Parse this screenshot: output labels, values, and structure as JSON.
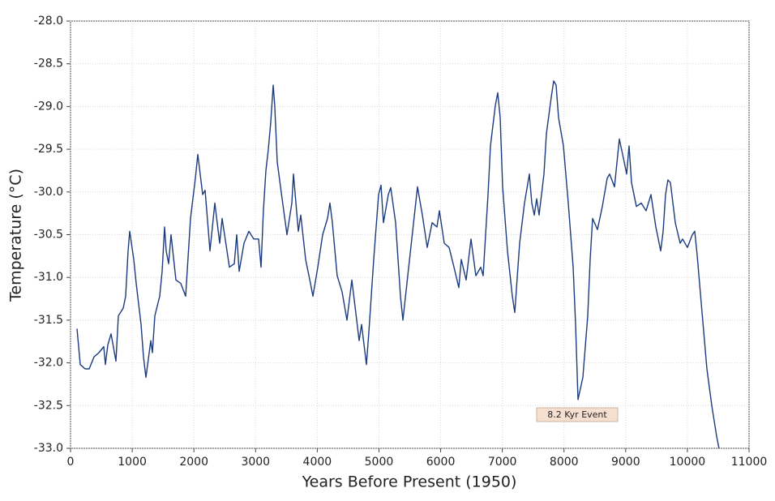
{
  "chart_data": {
    "type": "line",
    "xlabel": "Years Before Present (1950)",
    "ylabel": "Temperature (°C)",
    "annotations": [
      {
        "text": "8.2 Kyr Event"
      }
    ],
    "xlim": [
      0,
      11000
    ],
    "xticks": [
      0,
      1000,
      2000,
      3000,
      4000,
      5000,
      6000,
      7000,
      8000,
      9000,
      10000,
      11000
    ],
    "ylim": [
      -33,
      -28
    ],
    "yticks": [
      {
        "value": -28,
        "label": "-28.0"
      },
      -28.5,
      {
        "value": -29,
        "label": "-29.0"
      },
      -29.5,
      {
        "value": -30,
        "label": "-30.0"
      },
      -30.5,
      {
        "value": -31,
        "label": "-31.0"
      },
      -31.5,
      {
        "value": -32,
        "label": "-32.0"
      },
      -32.5,
      {
        "value": -33,
        "label": "-33.0"
      }
    ],
    "grid": true,
    "series": [
      {
        "color": "#1c3a7e",
        "x": [
          105,
          158,
          237,
          302,
          381,
          460,
          539,
          565,
          605,
          657,
          736,
          775,
          854,
          894,
          933,
          959,
          1025,
          1064,
          1143,
          1183,
          1222,
          1301,
          1327,
          1367,
          1446,
          1485,
          1524,
          1551,
          1590,
          1630,
          1708,
          1787,
          1866,
          1945,
          2024,
          2063,
          2142,
          2182,
          2260,
          2339,
          2418,
          2457,
          2536,
          2576,
          2655,
          2694,
          2733,
          2812,
          2891,
          2970,
          3049,
          3088,
          3127,
          3167,
          3206,
          3246,
          3285,
          3311,
          3351,
          3430,
          3509,
          3588,
          3614,
          3693,
          3732,
          3811,
          3890,
          3929,
          4008,
          4087,
          4166,
          4205,
          4245,
          4323,
          4402,
          4481,
          4560,
          4639,
          4678,
          4718,
          4797,
          4836,
          4915,
          4994,
          5033,
          5073,
          5152,
          5191,
          5270,
          5349,
          5388,
          5467,
          5546,
          5625,
          5704,
          5783,
          5861,
          5940,
          5980,
          6058,
          6137,
          6216,
          6295,
          6334,
          6413,
          6492,
          6571,
          6650,
          6689,
          6729,
          6768,
          6808,
          6886,
          6926,
          6965,
          7005,
          7084,
          7163,
          7202,
          7281,
          7360,
          7439,
          7478,
          7518,
          7557,
          7596,
          7675,
          7714,
          7793,
          7833,
          7872,
          7912,
          7991,
          8069,
          8148,
          8188,
          8227,
          8306,
          8385,
          8424,
          8464,
          8542,
          8621,
          8700,
          8740,
          8818,
          8897,
          8976,
          9015,
          9055,
          9094,
          9173,
          9252,
          9331,
          9410,
          9489,
          9567,
          9607,
          9646,
          9685,
          9725,
          9804,
          9883,
          9922,
          10001,
          10080,
          10119,
          10159,
          10238,
          10316,
          10395,
          10474,
          10513
        ],
        "values": [
          -31.6,
          -32.02,
          -32.07,
          -32.07,
          -31.93,
          -31.88,
          -31.81,
          -32.02,
          -31.79,
          -31.66,
          -31.98,
          -31.45,
          -31.36,
          -31.22,
          -30.69,
          -30.46,
          -30.79,
          -31.07,
          -31.55,
          -31.93,
          -32.17,
          -31.74,
          -31.88,
          -31.45,
          -31.22,
          -30.93,
          -30.41,
          -30.69,
          -30.84,
          -30.5,
          -31.03,
          -31.07,
          -31.22,
          -30.31,
          -29.84,
          -29.56,
          -30.03,
          -29.98,
          -30.69,
          -30.13,
          -30.6,
          -30.31,
          -30.69,
          -30.88,
          -30.84,
          -30.5,
          -30.93,
          -30.6,
          -30.46,
          -30.55,
          -30.55,
          -30.88,
          -30.22,
          -29.75,
          -29.51,
          -29.18,
          -28.75,
          -28.99,
          -29.65,
          -30.08,
          -30.5,
          -30.13,
          -29.79,
          -30.46,
          -30.27,
          -30.79,
          -31.07,
          -31.22,
          -30.88,
          -30.5,
          -30.31,
          -30.13,
          -30.36,
          -30.98,
          -31.17,
          -31.5,
          -31.03,
          -31.5,
          -31.74,
          -31.55,
          -32.02,
          -31.64,
          -30.79,
          -30.03,
          -29.92,
          -30.36,
          -30.03,
          -29.95,
          -30.36,
          -31.22,
          -31.5,
          -30.98,
          -30.46,
          -29.94,
          -30.27,
          -30.65,
          -30.36,
          -30.41,
          -30.22,
          -30.6,
          -30.65,
          -30.88,
          -31.12,
          -30.79,
          -31.03,
          -30.55,
          -30.98,
          -30.88,
          -30.98,
          -30.5,
          -30.03,
          -29.46,
          -28.99,
          -28.84,
          -29.13,
          -29.94,
          -30.69,
          -31.22,
          -31.41,
          -30.6,
          -30.13,
          -29.79,
          -30.13,
          -30.27,
          -30.08,
          -30.27,
          -29.79,
          -29.32,
          -28.89,
          -28.7,
          -28.75,
          -29.13,
          -29.46,
          -30.13,
          -30.88,
          -31.55,
          -32.43,
          -32.17,
          -31.45,
          -30.79,
          -30.31,
          -30.44,
          -30.17,
          -29.84,
          -29.79,
          -29.94,
          -29.38,
          -29.65,
          -29.79,
          -29.46,
          -29.89,
          -30.17,
          -30.13,
          -30.22,
          -30.03,
          -30.41,
          -30.69,
          -30.46,
          -30.03,
          -29.86,
          -29.89,
          -30.36,
          -30.6,
          -30.55,
          -30.65,
          -30.5,
          -30.46,
          -30.74,
          -31.41,
          -32.07,
          -32.5,
          -32.86,
          -33.0
        ]
      }
    ]
  }
}
